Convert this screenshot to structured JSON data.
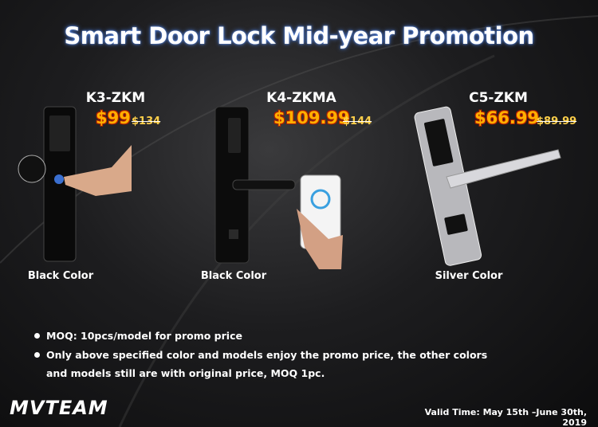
{
  "title": "Smart Door Lock Mid-year Promotion",
  "products": [
    {
      "model": "K3-ZKM",
      "promo_price": "$99",
      "original_price": "$134",
      "color": "Black Color"
    },
    {
      "model": "K4-ZKMA",
      "promo_price": "$109.99",
      "original_price": "$144",
      "color": "Black Color"
    },
    {
      "model": "C5-ZKM",
      "promo_price": "$66.99",
      "original_price": "$89.99",
      "color": "Silver Color"
    }
  ],
  "notes": [
    "MOQ: 10pcs/model for promo price",
    "Only above specified color and models enjoy the promo price, the other colors and models still are with original price, MOQ 1pc."
  ],
  "logo": "MVTEAM",
  "valid_time": "Valid Time: May 15th –June 30th, 2019"
}
